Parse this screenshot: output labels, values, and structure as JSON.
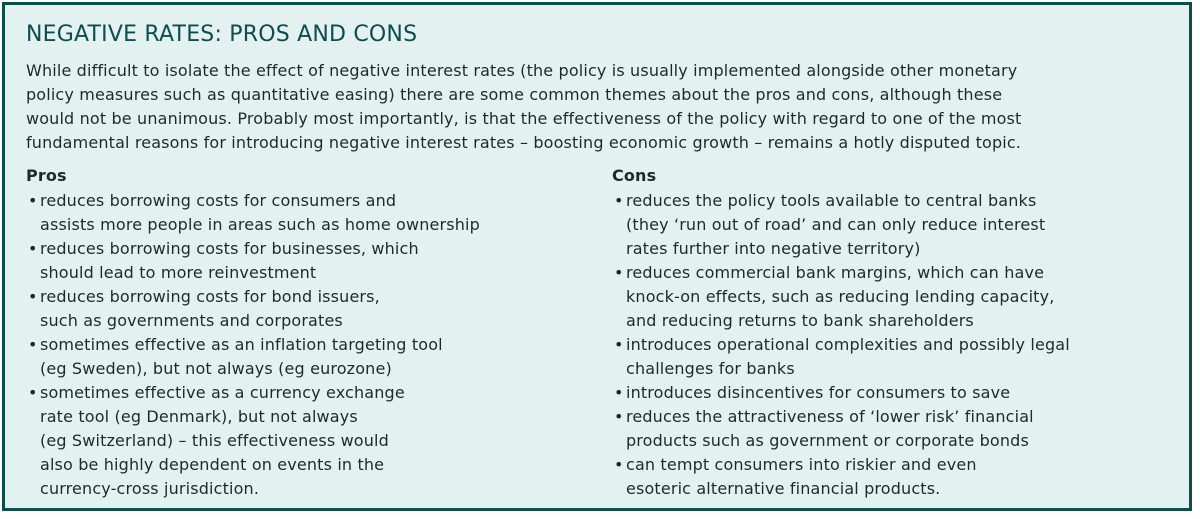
{
  "title": "NEGATIVE RATES: PROS AND CONS",
  "intro": [
    "While difficult to isolate the effect of negative interest rates (the policy is usually implemented alongside other monetary",
    "policy measures such as quantitative easing) there are some common themes about the pros and cons, although these",
    "would not be unanimous. Probably most importantly, is that the effectiveness of the policy with regard to one of the most",
    "fundamental reasons for introducing negative interest rates – boosting economic growth – remains a hotly disputed topic."
  ],
  "pros": {
    "heading": "Pros",
    "items": [
      [
        "reduces borrowing costs for consumers and",
        "assists more people in areas such as home ownership"
      ],
      [
        "reduces borrowing costs for businesses, which",
        "should lead to more reinvestment"
      ],
      [
        "reduces borrowing costs for bond issuers,",
        "such as governments and corporates"
      ],
      [
        "sometimes effective as an inflation targeting tool",
        "(eg Sweden), but not always (eg eurozone)"
      ],
      [
        "sometimes effective as a currency exchange",
        "rate tool (eg Denmark), but not always",
        "(eg Switzerland) – this effectiveness would",
        "also be highly dependent on events in the",
        "currency-cross jurisdiction."
      ]
    ]
  },
  "cons": {
    "heading": "Cons",
    "items": [
      [
        "reduces the policy tools available to central banks",
        "(they ‘run out of road’ and can only reduce interest",
        "rates further into negative territory)"
      ],
      [
        "reduces commercial bank margins, which can have",
        "knock-on effects, such as reducing lending capacity,",
        "and reducing returns to bank shareholders"
      ],
      [
        "introduces operational complexities and possibly legal",
        "challenges for banks"
      ],
      [
        "introduces disincentives for consumers to save"
      ],
      [
        "reduces the attractiveness of ‘lower risk’ financial",
        "products such as government or corporate bonds"
      ],
      [
        "can tempt consumers into riskier and even",
        "esoteric alternative financial products."
      ]
    ]
  }
}
